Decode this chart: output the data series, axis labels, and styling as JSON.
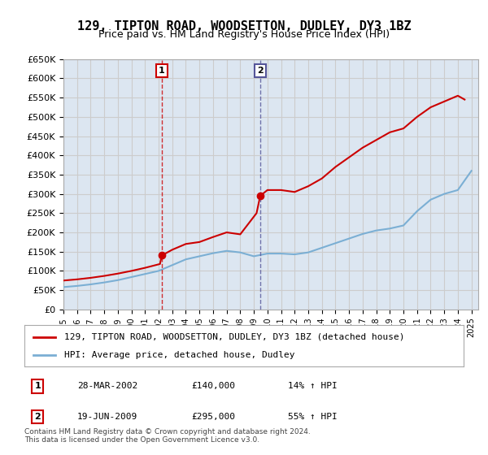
{
  "title": "129, TIPTON ROAD, WOODSETTON, DUDLEY, DY3 1BZ",
  "subtitle": "Price paid vs. HM Land Registry's House Price Index (HPI)",
  "title_fontsize": 11,
  "subtitle_fontsize": 9,
  "bg_color": "#ffffff",
  "grid_color": "#cccccc",
  "plot_bg": "#dce6f1",
  "red_color": "#cc0000",
  "blue_color": "#7bafd4",
  "vline_color_1": "#cc0000",
  "vline_color_2": "#555599",
  "transactions": [
    {
      "id": 1,
      "year": 2002.23,
      "price": 140000,
      "date": "28-MAR-2002",
      "pct": "14%",
      "dir": "↑"
    },
    {
      "id": 2,
      "year": 2009.47,
      "price": 295000,
      "date": "19-JUN-2009",
      "pct": "55%",
      "dir": "↑"
    }
  ],
  "legend_label_red": "129, TIPTON ROAD, WOODSETTON, DUDLEY, DY3 1BZ (detached house)",
  "legend_label_blue": "HPI: Average price, detached house, Dudley",
  "footer": "Contains HM Land Registry data © Crown copyright and database right 2024.\nThis data is licensed under the Open Government Licence v3.0.",
  "ylim": [
    0,
    650000
  ],
  "ytick_step": 50000,
  "xmin": 1995,
  "xmax": 2025.5,
  "hpi_data": {
    "years": [
      1995,
      1996,
      1997,
      1998,
      1999,
      2000,
      2001,
      2002,
      2003,
      2004,
      2005,
      2006,
      2007,
      2008,
      2009,
      2010,
      2011,
      2012,
      2013,
      2014,
      2015,
      2016,
      2017,
      2018,
      2019,
      2020,
      2021,
      2022,
      2023,
      2024,
      2025
    ],
    "values": [
      58000,
      61000,
      65000,
      70000,
      76000,
      84000,
      92000,
      100000,
      115000,
      130000,
      138000,
      146000,
      152000,
      148000,
      138000,
      145000,
      145000,
      143000,
      148000,
      160000,
      172000,
      184000,
      196000,
      205000,
      210000,
      218000,
      255000,
      285000,
      300000,
      310000,
      360000
    ]
  },
  "price_data": {
    "years": [
      1995,
      1996,
      1997,
      1998,
      1999,
      2000,
      2001,
      2002.1,
      2002.23,
      2003,
      2004,
      2005,
      2006,
      2007,
      2008,
      2009.2,
      2009.47,
      2010,
      2011,
      2012,
      2013,
      2014,
      2015,
      2016,
      2017,
      2018,
      2019,
      2020,
      2021,
      2022,
      2023,
      2024,
      2024.5
    ],
    "values": [
      75000,
      78000,
      82000,
      87000,
      93000,
      100000,
      108000,
      118000,
      140000,
      155000,
      170000,
      175000,
      188000,
      200000,
      195000,
      250000,
      295000,
      310000,
      310000,
      305000,
      320000,
      340000,
      370000,
      395000,
      420000,
      440000,
      460000,
      470000,
      500000,
      525000,
      540000,
      555000,
      545000
    ]
  }
}
